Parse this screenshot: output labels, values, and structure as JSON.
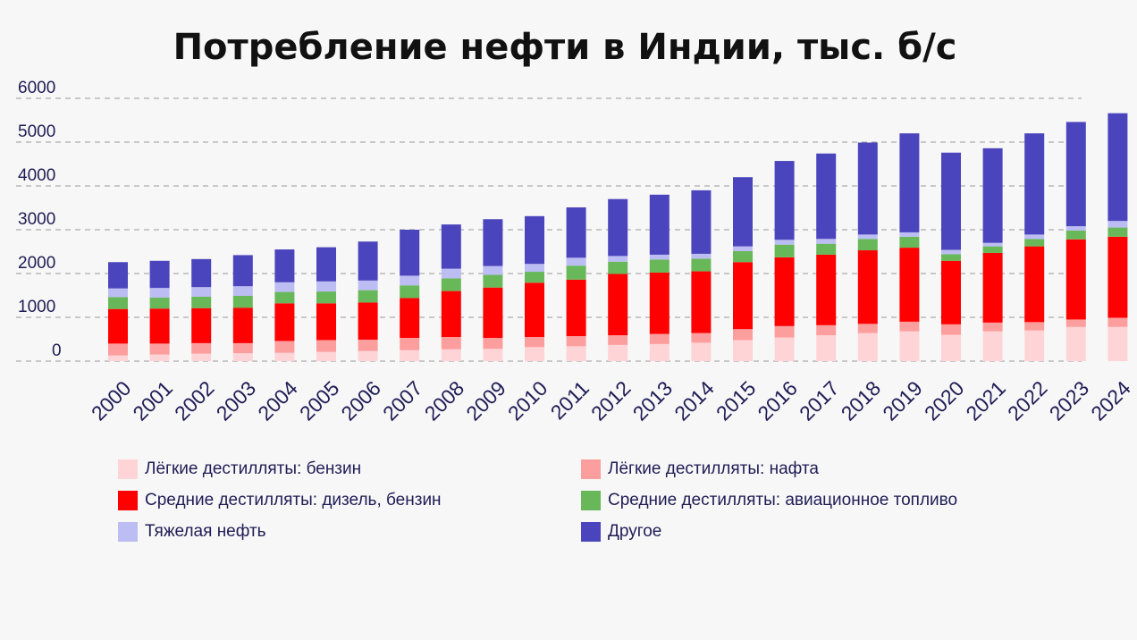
{
  "chart_data": {
    "type": "bar",
    "stacked": true,
    "title": "Потребление нефти в Индии, тыс. б/с",
    "xlabel": "",
    "ylabel": "",
    "ylim": [
      0,
      6000
    ],
    "yticks": [
      0,
      1000,
      2000,
      3000,
      4000,
      5000,
      6000
    ],
    "grid": true,
    "legend_position": "bottom",
    "categories": [
      "2000",
      "2001",
      "2002",
      "2003",
      "2004",
      "2005",
      "2006",
      "2007",
      "2008",
      "2009",
      "2010",
      "2011",
      "2012",
      "2013",
      "2014",
      "2015",
      "2016",
      "2017",
      "2018",
      "2019",
      "2020",
      "2021",
      "2022",
      "2023",
      "2024"
    ],
    "series": [
      {
        "name": "Лёгкие дестилляты: бензин",
        "color": "#ffd4d6",
        "values": [
          130,
          150,
          170,
          180,
          190,
          210,
          230,
          250,
          270,
          280,
          320,
          340,
          370,
          390,
          420,
          480,
          540,
          590,
          640,
          680,
          600,
          680,
          700,
          780,
          780
        ]
      },
      {
        "name": "Лёгкие дестилляты: нафта",
        "color": "#fd9e9e",
        "values": [
          270,
          250,
          240,
          230,
          270,
          270,
          260,
          280,
          280,
          250,
          230,
          230,
          220,
          230,
          220,
          250,
          260,
          230,
          210,
          220,
          240,
          200,
          190,
          170,
          210
        ]
      },
      {
        "name": "Средние дестилляты: дизель, бензин",
        "color": "#ff0000",
        "values": [
          790,
          800,
          800,
          810,
          860,
          840,
          850,
          910,
          1050,
          1150,
          1240,
          1290,
          1400,
          1400,
          1410,
          1530,
          1570,
          1610,
          1680,
          1690,
          1450,
          1590,
          1730,
          1830,
          1850
        ]
      },
      {
        "name": "Средние дестилляты: авиационное топливо",
        "color": "#68b85a",
        "values": [
          270,
          250,
          260,
          270,
          260,
          270,
          280,
          290,
          290,
          290,
          250,
          320,
          280,
          300,
          290,
          250,
          290,
          250,
          260,
          250,
          150,
          150,
          170,
          200,
          210
        ]
      },
      {
        "name": "Тяжелая нефть",
        "color": "#bcbdf3",
        "values": [
          200,
          220,
          220,
          220,
          220,
          230,
          220,
          220,
          220,
          200,
          180,
          180,
          130,
          110,
          110,
          110,
          110,
          110,
          100,
          100,
          100,
          80,
          100,
          100,
          150
        ]
      },
      {
        "name": "Другое",
        "color": "#4b45bd",
        "values": [
          600,
          620,
          640,
          710,
          750,
          780,
          890,
          1050,
          1010,
          1070,
          1090,
          1150,
          1300,
          1370,
          1450,
          1580,
          1800,
          1950,
          2100,
          2260,
          2220,
          2160,
          2310,
          2380,
          2460
        ]
      }
    ]
  },
  "legend": [
    {
      "label": "Лёгкие дестилляты: бензин",
      "color": "#ffd4d6"
    },
    {
      "label": "Лёгкие дестилляты: нафта",
      "color": "#fd9e9e"
    },
    {
      "label": "Средние дестилляты: дизель, бензин",
      "color": "#ff0000"
    },
    {
      "label": "Средние дестилляты: авиационное топливо",
      "color": "#68b85a"
    },
    {
      "label": "Тяжелая нефть",
      "color": "#bcbdf3"
    },
    {
      "label": "Другое",
      "color": "#4b45bd"
    }
  ]
}
